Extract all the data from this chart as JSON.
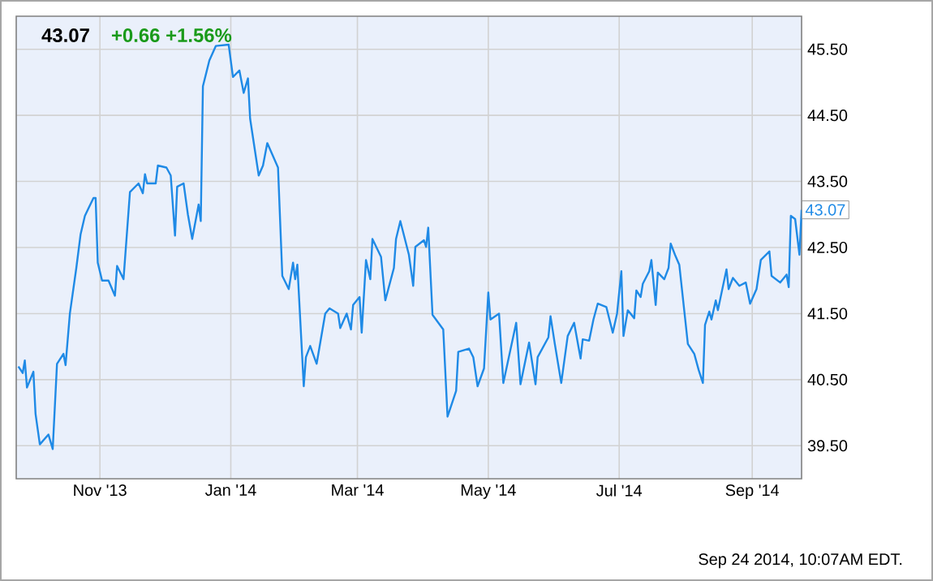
{
  "chart_data": {
    "type": "line",
    "title": "43.07",
    "subtitle": "+0.66  +1.56%",
    "color": "#1f8ae6",
    "grid": true,
    "xlim": [
      "2013-09-23",
      "2014-09-24"
    ],
    "ylim": [
      39,
      46
    ],
    "xticks": [
      {
        "value": "2013-11-01",
        "label": "Nov '13"
      },
      {
        "value": "2014-01-01",
        "label": "Jan '14"
      },
      {
        "value": "2014-03-01",
        "label": "Mar '14"
      },
      {
        "value": "2014-05-01",
        "label": "May '14"
      },
      {
        "value": "2014-07-01",
        "label": "Jul '14"
      },
      {
        "value": "2014-09-01",
        "label": "Sep '14"
      }
    ],
    "yticks": [
      {
        "value": 39.5,
        "label": "39.50"
      },
      {
        "value": 40.5,
        "label": "40.50"
      },
      {
        "value": 41.5,
        "label": "41.50"
      },
      {
        "value": 42.5,
        "label": "42.50"
      },
      {
        "value": 43.5,
        "label": "43.50"
      },
      {
        "value": 44.5,
        "label": "44.50"
      },
      {
        "value": 45.5,
        "label": "45.50"
      }
    ],
    "annotations": [
      {
        "text": "43.07",
        "x": "2014-09-24",
        "y": 43.07
      },
      "Sep 24 2014, 10:07AM EDT."
    ],
    "x": [
      "2013-09-24",
      "2013-09-26",
      "2013-09-27",
      "2013-09-28",
      "2013-10-01",
      "2013-10-02",
      "2013-10-04",
      "2013-10-08",
      "2013-10-10",
      "2013-10-12",
      "2013-10-15",
      "2013-10-16",
      "2013-10-18",
      "2013-10-21",
      "2013-10-23",
      "2013-10-25",
      "2013-10-29",
      "2013-10-30",
      "2013-10-31",
      "2013-11-02",
      "2013-11-05",
      "2013-11-08",
      "2013-11-09",
      "2013-11-12",
      "2013-11-15",
      "2013-11-19",
      "2013-11-21",
      "2013-11-22",
      "2013-11-23",
      "2013-11-27",
      "2013-11-28",
      "2013-12-02",
      "2013-12-04",
      "2013-12-06",
      "2013-12-07",
      "2013-12-10",
      "2013-12-12",
      "2013-12-14",
      "2013-12-17",
      "2013-12-18",
      "2013-12-19",
      "2013-12-22",
      "2013-12-25",
      "2013-12-31",
      "2014-01-02",
      "2014-01-05",
      "2014-01-07",
      "2014-01-09",
      "2014-01-10",
      "2014-01-14",
      "2014-01-16",
      "2014-01-18",
      "2014-01-23",
      "2014-01-25",
      "2014-01-28",
      "2014-01-30",
      "2014-01-31",
      "2014-02-01",
      "2014-02-04",
      "2014-02-05",
      "2014-02-07",
      "2014-02-10",
      "2014-02-14",
      "2014-02-16",
      "2014-02-20",
      "2014-02-21",
      "2014-02-24",
      "2014-02-26",
      "2014-02-27",
      "2014-03-02",
      "2014-03-03",
      "2014-03-05",
      "2014-03-07",
      "2014-03-08",
      "2014-03-12",
      "2014-03-14",
      "2014-03-18",
      "2014-03-19",
      "2014-03-21",
      "2014-03-25",
      "2014-03-27",
      "2014-03-28",
      "2014-04-01",
      "2014-04-02",
      "2014-04-03",
      "2014-04-05",
      "2014-04-10",
      "2014-04-12",
      "2014-04-16",
      "2014-04-17",
      "2014-04-22",
      "2014-04-24",
      "2014-04-26",
      "2014-04-29",
      "2014-05-01",
      "2014-05-02",
      "2014-05-06",
      "2014-05-08",
      "2014-05-14",
      "2014-05-16",
      "2014-05-20",
      "2014-05-23",
      "2014-05-24",
      "2014-05-29",
      "2014-05-30",
      "2014-06-01",
      "2014-06-04",
      "2014-06-07",
      "2014-06-10",
      "2014-06-13",
      "2014-06-14",
      "2014-06-17",
      "2014-06-19",
      "2014-06-21",
      "2014-06-25",
      "2014-06-28",
      "2014-06-30",
      "2014-07-02",
      "2014-07-03",
      "2014-07-05",
      "2014-07-08",
      "2014-07-09",
      "2014-07-11",
      "2014-07-12",
      "2014-07-15",
      "2014-07-16",
      "2014-07-18",
      "2014-07-19",
      "2014-07-22",
      "2014-07-24",
      "2014-07-25",
      "2014-07-27",
      "2014-07-29",
      "2014-08-02",
      "2014-08-05",
      "2014-08-07",
      "2014-08-08",
      "2014-08-09",
      "2014-08-10",
      "2014-08-12",
      "2014-08-13",
      "2014-08-15",
      "2014-08-16",
      "2014-08-20",
      "2014-08-21",
      "2014-08-23",
      "2014-08-26",
      "2014-08-29",
      "2014-08-31",
      "2014-09-03",
      "2014-09-05",
      "2014-09-09",
      "2014-09-10",
      "2014-09-14",
      "2014-09-17",
      "2014-09-18",
      "2014-09-19",
      "2014-09-21",
      "2014-09-23",
      "2014-09-24"
    ],
    "values": [
      40.7,
      40.6,
      40.79,
      40.38,
      40.62,
      39.98,
      39.52,
      39.67,
      39.45,
      40.74,
      40.89,
      40.72,
      41.5,
      42.19,
      42.7,
      42.98,
      43.25,
      43.25,
      42.27,
      42.0,
      42.0,
      41.77,
      42.22,
      42.02,
      43.34,
      43.47,
      43.32,
      43.61,
      43.47,
      43.47,
      43.74,
      43.71,
      43.59,
      42.68,
      43.42,
      43.47,
      43.0,
      42.63,
      43.15,
      42.9,
      44.94,
      45.33,
      45.55,
      45.57,
      45.08,
      45.18,
      44.84,
      45.06,
      44.45,
      43.59,
      43.74,
      44.08,
      43.71,
      42.07,
      41.87,
      42.27,
      42.02,
      42.24,
      40.4,
      40.84,
      41.01,
      40.74,
      41.5,
      41.58,
      41.5,
      41.28,
      41.5,
      41.26,
      41.63,
      41.75,
      41.21,
      42.31,
      42.02,
      42.63,
      42.36,
      41.7,
      42.19,
      42.63,
      42.9,
      42.39,
      41.92,
      42.51,
      42.61,
      42.51,
      42.8,
      41.48,
      41.26,
      39.94,
      40.33,
      40.92,
      40.97,
      40.84,
      40.4,
      40.67,
      41.82,
      41.41,
      41.5,
      40.45,
      41.36,
      40.43,
      41.06,
      40.43,
      40.84,
      41.14,
      41.46,
      41.04,
      40.45,
      41.16,
      41.36,
      40.82,
      41.11,
      41.09,
      41.41,
      41.65,
      41.6,
      41.21,
      41.5,
      42.14,
      41.16,
      41.55,
      41.43,
      41.85,
      41.75,
      41.95,
      42.14,
      42.31,
      41.63,
      42.12,
      42.02,
      42.19,
      42.56,
      42.39,
      42.24,
      41.04,
      40.89,
      40.65,
      40.55,
      40.45,
      41.33,
      41.53,
      41.41,
      41.7,
      41.55,
      42.17,
      41.87,
      42.04,
      41.92,
      41.97,
      41.65,
      41.87,
      42.31,
      42.44,
      42.07,
      41.97,
      42.09,
      41.9,
      42.98,
      42.93,
      42.39,
      43.07
    ]
  }
}
